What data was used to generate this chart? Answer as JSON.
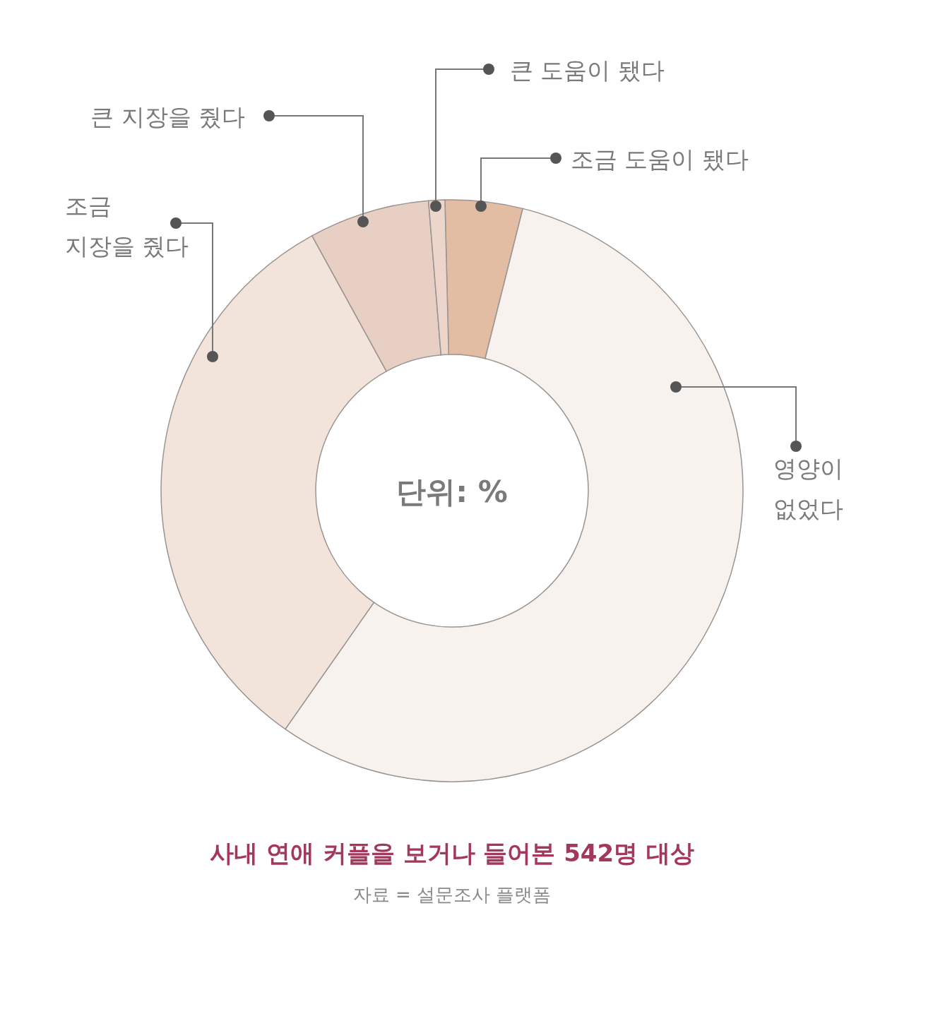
{
  "chart_data": {
    "type": "donut",
    "title": "사내 연애 커플을 보거나 들어본 542명 대상",
    "annotations": [
      "단위: %",
      "자료 = 설문조사 플랫폼"
    ],
    "categories": [
      "조금 도움이 됐다",
      "영양이 없었다",
      "조금 지장을 줬다",
      "큰 지장을 줬다",
      "큰 도움이 됐다"
    ],
    "values": [
      4.3,
      55.8,
      32.3,
      6.7,
      0.9
    ],
    "colors": [
      "#e2bca3",
      "#f8f2ee",
      "#f2e4da",
      "#e8cfc3",
      "#ecd6cb"
    ]
  }
}
